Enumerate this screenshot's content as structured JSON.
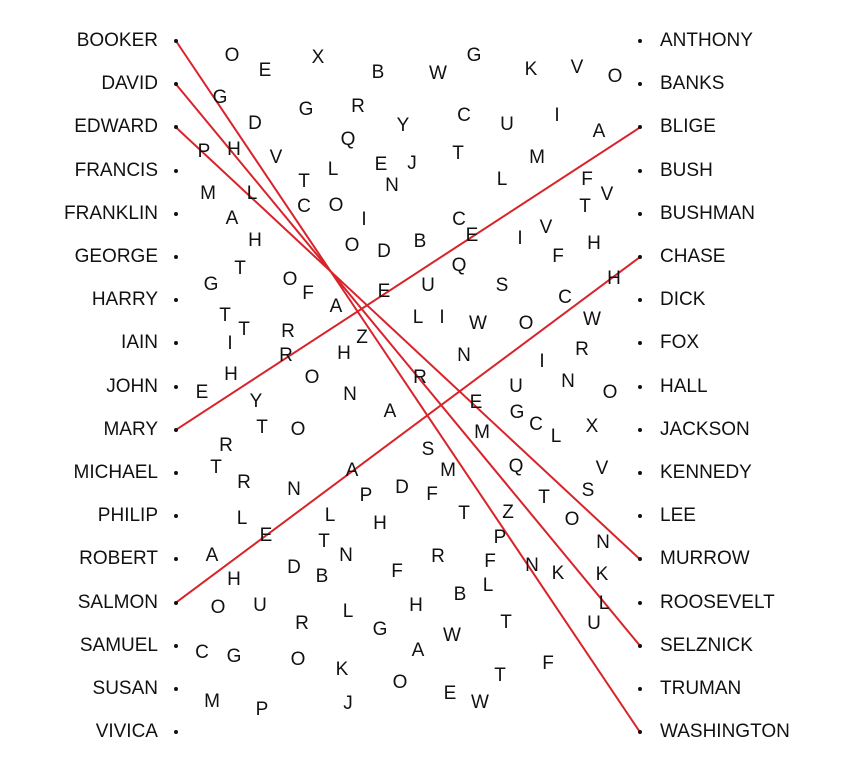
{
  "left_names": [
    "BOOKER",
    "DAVID",
    "EDWARD",
    "FRANCIS",
    "FRANKLIN",
    "GEORGE",
    "HARRY",
    "IAIN",
    "JOHN",
    "MARY",
    "MICHAEL",
    "PHILIP",
    "ROBERT",
    "SALMON",
    "SAMUEL",
    "SUSAN",
    "VIVICA"
  ],
  "right_names": [
    "ANTHONY",
    "BANKS",
    "BLIGE",
    "BUSH",
    "BUSHMAN",
    "CHASE",
    "DICK",
    "FOX",
    "HALL",
    "JACKSON",
    "KENNEDY",
    "LEE",
    "MURROW",
    "ROOSEVELT",
    "SELZNICK",
    "TRUMAN",
    "WASHINGTON"
  ],
  "connections": [
    {
      "from": "BOOKER",
      "to": "WASHINGTON"
    },
    {
      "from": "DAVID",
      "to": "SELZNICK"
    },
    {
      "from": "EDWARD",
      "to": "MURROW"
    },
    {
      "from": "MARY",
      "to": "BLIGE"
    },
    {
      "from": "SALMON",
      "to": "CHASE"
    }
  ],
  "line_color": "#d9232a",
  "letters": [
    "O",
    "E",
    "X",
    "B",
    "W",
    "G",
    "K",
    "V",
    "O",
    "G",
    "D",
    "G",
    "R",
    "Y",
    "C",
    "U",
    "I",
    "A",
    "P",
    "H",
    "V",
    "Q",
    "L",
    "E",
    "J",
    "T",
    "M",
    "N",
    "L",
    "F",
    "V",
    "M",
    "L",
    "T",
    "C",
    "O",
    "I",
    "T",
    "A",
    "H",
    "C",
    "E",
    "I",
    "V",
    "O",
    "D",
    "B",
    "H",
    "F",
    "Q",
    "G",
    "T",
    "O",
    "F",
    "A",
    "E",
    "U",
    "S",
    "C",
    "H",
    "T",
    "T",
    "L",
    "I",
    "W",
    "O",
    "R",
    "W",
    "Z",
    "I",
    "R",
    "H",
    "N",
    "R",
    "I",
    "H",
    "O",
    "N",
    "U",
    "N",
    "E",
    "Y",
    "R",
    "A",
    "E",
    "O",
    "G",
    "T",
    "O",
    "M",
    "C",
    "L",
    "X",
    "R",
    "T",
    "R",
    "A",
    "S",
    "M",
    "Q",
    "V",
    "T",
    "N",
    "P",
    "D",
    "F",
    "T",
    "L",
    "L",
    "H",
    "Z",
    "S",
    "O",
    "E",
    "T",
    "N",
    "A",
    "H",
    "D",
    "B",
    "F",
    "R",
    "F",
    "P",
    "L",
    "N",
    "K",
    "K",
    "N",
    "O",
    "U",
    "L",
    "H",
    "B",
    "T",
    "L",
    "R",
    "G",
    "A",
    "W",
    "U",
    "C",
    "G",
    "O",
    "K",
    "F",
    "M",
    "P",
    "J",
    "O",
    "E",
    "W",
    "T"
  ]
}
